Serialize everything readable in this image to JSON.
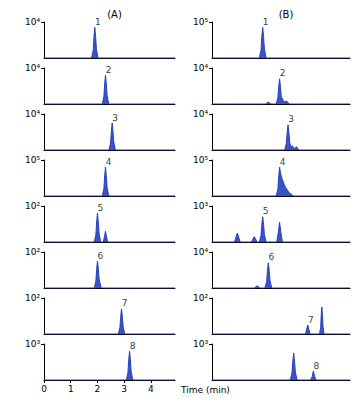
{
  "chart_data": [
    {
      "type": "line",
      "title": "(A)",
      "color": "#2540c0",
      "tick_labels": "y",
      "x": [
        0,
        1.78,
        1.84,
        1.87,
        1.9,
        1.93,
        1.96,
        2.02,
        4.9
      ],
      "values": [
        0,
        0,
        2100,
        6000,
        8500,
        6000,
        2600,
        0,
        0
      ],
      "xlim": [
        0,
        4.9
      ],
      "ylim": [
        0,
        10000
      ],
      "yticks": [
        {
          "value": 10000,
          "label": "10⁴"
        }
      ],
      "annotations": [
        {
          "text": "1",
          "x": 1.9,
          "y": 8500
        }
      ]
    },
    {
      "type": "line",
      "color": "#2540c0",
      "tick_labels": "y",
      "x": [
        0,
        2.18,
        2.24,
        2.27,
        2.3,
        2.33,
        2.36,
        2.42,
        4.9
      ],
      "values": [
        0,
        0,
        2000,
        5600,
        8000,
        5600,
        2400,
        0,
        0
      ],
      "xlim": [
        0,
        4.9
      ],
      "ylim": [
        0,
        10000
      ],
      "yticks": [
        {
          "value": 10000,
          "label": "10⁴"
        }
      ],
      "annotations": [
        {
          "text": "2",
          "x": 2.3,
          "y": 8000
        }
      ]
    },
    {
      "type": "line",
      "color": "#2540c0",
      "tick_labels": "y",
      "x": [
        0,
        2.43,
        2.49,
        2.52,
        2.55,
        2.58,
        2.61,
        2.67,
        4.9
      ],
      "values": [
        0,
        0,
        1900,
        5200,
        7500,
        5200,
        2200,
        0,
        0
      ],
      "xlim": [
        0,
        4.9
      ],
      "ylim": [
        0,
        10000
      ],
      "yticks": [
        {
          "value": 10000,
          "label": "10⁴"
        }
      ],
      "annotations": [
        {
          "text": "3",
          "x": 2.55,
          "y": 7500
        }
      ]
    },
    {
      "type": "line",
      "color": "#2540c0",
      "tick_labels": "y",
      "x": [
        0,
        2.18,
        2.24,
        2.27,
        2.3,
        2.33,
        2.36,
        2.42,
        4.9
      ],
      "values": [
        0,
        0,
        20000,
        56000,
        80000,
        56000,
        24000,
        0,
        0
      ],
      "xlim": [
        0,
        4.9
      ],
      "ylim": [
        0,
        100000
      ],
      "yticks": [
        {
          "value": 100000,
          "label": "10⁵"
        }
      ],
      "annotations": [
        {
          "text": "4",
          "x": 2.3,
          "y": 80000
        }
      ]
    },
    {
      "type": "line",
      "color": "#2540c0",
      "tick_labels": "y",
      "x": [
        0,
        1.88,
        1.94,
        1.97,
        2.0,
        2.03,
        2.06,
        2.12,
        2.22,
        2.27,
        2.3,
        2.33,
        2.38,
        4.9
      ],
      "values": [
        0,
        0,
        20,
        56,
        80,
        56,
        24,
        0,
        0,
        18,
        30,
        18,
        0,
        0
      ],
      "xlim": [
        0,
        4.9
      ],
      "ylim": [
        0,
        100
      ],
      "yticks": [
        {
          "value": 100,
          "label": "10²"
        }
      ],
      "annotations": [
        {
          "text": "5",
          "x": 2.0,
          "y": 80
        }
      ]
    },
    {
      "type": "line",
      "color": "#2540c0",
      "tick_labels": "y",
      "x": [
        0,
        1.88,
        1.94,
        1.97,
        2.0,
        2.03,
        2.06,
        2.14,
        4.9
      ],
      "values": [
        0,
        0,
        19,
        52,
        75,
        55,
        25,
        0,
        0
      ],
      "xlim": [
        0,
        4.9
      ],
      "ylim": [
        0,
        100
      ],
      "yticks": [
        {
          "value": 100,
          "label": "10²"
        }
      ],
      "annotations": [
        {
          "text": "6",
          "x": 2.0,
          "y": 75
        }
      ]
    },
    {
      "type": "line",
      "color": "#2540c0",
      "tick_labels": "y",
      "x": [
        0,
        2.78,
        2.84,
        2.87,
        2.9,
        2.93,
        2.96,
        3.02,
        4.9
      ],
      "values": [
        0,
        0,
        18,
        49,
        70,
        49,
        21,
        0,
        0
      ],
      "xlim": [
        0,
        4.9
      ],
      "ylim": [
        0,
        100
      ],
      "yticks": [
        {
          "value": 100,
          "label": "10²"
        }
      ],
      "annotations": [
        {
          "text": "7",
          "x": 2.9,
          "y": 70
        }
      ]
    },
    {
      "type": "line",
      "color": "#2540c0",
      "x_label": "Time (min)",
      "x": [
        0,
        3.08,
        3.14,
        3.17,
        3.2,
        3.23,
        3.26,
        3.32,
        4.9
      ],
      "values": [
        0,
        0,
        200,
        560,
        800,
        560,
        240,
        0,
        0
      ],
      "xlim": [
        0,
        4.9
      ],
      "xticks": [
        0,
        1,
        2,
        3,
        4
      ],
      "ylim": [
        0,
        1000
      ],
      "yticks": [
        {
          "value": 1000,
          "label": "10³"
        }
      ],
      "annotations": [
        {
          "text": "8",
          "x": 3.2,
          "y": 800
        }
      ]
    },
    {
      "type": "line",
      "title": "(B)",
      "color": "#2540c0",
      "tick_labels": "y",
      "x": [
        0,
        1.68,
        1.74,
        1.77,
        1.8,
        1.83,
        1.86,
        1.92,
        4.9
      ],
      "values": [
        0,
        0,
        21000,
        60000,
        85000,
        60000,
        26000,
        0,
        0
      ],
      "xlim": [
        0,
        4.9
      ],
      "ylim": [
        0,
        100000
      ],
      "yticks": [
        {
          "value": 100000,
          "label": "10⁵"
        }
      ],
      "annotations": [
        {
          "text": "1",
          "x": 1.8,
          "y": 85000
        }
      ]
    },
    {
      "type": "line",
      "color": "#2540c0",
      "tick_labels": "y",
      "x": [
        0,
        1.9,
        2.0,
        2.1,
        2.28,
        2.34,
        2.37,
        2.4,
        2.43,
        2.46,
        2.5,
        2.55,
        2.65,
        2.75,
        4.9
      ],
      "values": [
        0,
        0,
        500,
        0,
        0,
        1800,
        4900,
        7000,
        4900,
        2000,
        1500,
        500,
        800,
        0,
        0
      ],
      "xlim": [
        0,
        4.9
      ],
      "ylim": [
        0,
        10000
      ],
      "yticks": [
        {
          "value": 10000,
          "label": "10⁴"
        }
      ],
      "annotations": [
        {
          "text": "2",
          "x": 2.4,
          "y": 7000
        }
      ]
    },
    {
      "type": "line",
      "color": "#2540c0",
      "tick_labels": "y",
      "x": [
        0,
        2.58,
        2.64,
        2.67,
        2.7,
        2.73,
        2.76,
        2.8,
        2.85,
        2.92,
        3.0,
        3.08,
        4.9
      ],
      "values": [
        0,
        0,
        1800,
        4900,
        7000,
        4900,
        2100,
        600,
        1200,
        300,
        900,
        0,
        0
      ],
      "xlim": [
        0,
        4.9
      ],
      "ylim": [
        0,
        10000
      ],
      "yticks": [
        {
          "value": 10000,
          "label": "10⁴"
        }
      ],
      "annotations": [
        {
          "text": "3",
          "x": 2.7,
          "y": 7000
        }
      ]
    },
    {
      "type": "line",
      "color": "#2540c0",
      "tick_labels": "y",
      "x": [
        0,
        2.28,
        2.34,
        2.37,
        2.4,
        2.43,
        2.46,
        2.5,
        2.6,
        2.75,
        2.9,
        4.9
      ],
      "values": [
        0,
        0,
        20000,
        56000,
        80000,
        65000,
        55000,
        45000,
        25000,
        8000,
        0,
        0
      ],
      "xlim": [
        0,
        4.9
      ],
      "ylim": [
        0,
        100000
      ],
      "yticks": [
        {
          "value": 100000,
          "label": "10⁵"
        }
      ],
      "annotations": [
        {
          "text": "4",
          "x": 2.4,
          "y": 80000
        }
      ]
    },
    {
      "type": "line",
      "color": "#2540c0",
      "tick_labels": "y",
      "x": [
        0,
        0.8,
        0.9,
        1.0,
        1.4,
        1.5,
        1.6,
        1.68,
        1.74,
        1.77,
        1.8,
        1.83,
        1.86,
        1.92,
        2.3,
        2.36,
        2.4,
        2.44,
        2.5,
        4.9
      ],
      "values": [
        0,
        0,
        250,
        0,
        0,
        150,
        0,
        0,
        180,
        490,
        700,
        490,
        210,
        0,
        0,
        300,
        550,
        300,
        0,
        0
      ],
      "xlim": [
        0,
        4.9
      ],
      "ylim": [
        0,
        1000
      ],
      "yticks": [
        {
          "value": 1000,
          "label": "10³"
        }
      ],
      "annotations": [
        {
          "text": "5",
          "x": 1.8,
          "y": 700
        }
      ]
    },
    {
      "type": "line",
      "color": "#2540c0",
      "tick_labels": "y",
      "x": [
        0,
        1.5,
        1.6,
        1.7,
        1.88,
        1.94,
        1.97,
        2.0,
        2.03,
        2.06,
        2.12,
        4.9
      ],
      "values": [
        0,
        0,
        600,
        0,
        0,
        1800,
        4900,
        7000,
        4900,
        2100,
        0,
        0
      ],
      "xlim": [
        0,
        4.9
      ],
      "ylim": [
        0,
        10000
      ],
      "yticks": [
        {
          "value": 10000,
          "label": "10⁴"
        }
      ],
      "annotations": [
        {
          "text": "6",
          "x": 2.0,
          "y": 7000
        }
      ]
    },
    {
      "type": "line",
      "color": "#2540c0",
      "tick_labels": "y",
      "x": [
        0,
        3.32,
        3.4,
        3.48,
        3.82,
        3.86,
        3.88,
        3.9,
        3.92,
        3.94,
        3.98,
        4.9
      ],
      "values": [
        0,
        0,
        25,
        0,
        0,
        20,
        55,
        75,
        55,
        22,
        0,
        0
      ],
      "xlim": [
        0,
        4.9
      ],
      "ylim": [
        0,
        100
      ],
      "yticks": [
        {
          "value": 100,
          "label": "10²"
        }
      ],
      "annotations": [
        {
          "text": "7",
          "x": 3.4,
          "y": 25
        }
      ]
    },
    {
      "type": "line",
      "color": "#2540c0",
      "tick_labels": "y",
      "x": [
        0,
        2.78,
        2.84,
        2.87,
        2.9,
        2.93,
        2.96,
        3.02,
        3.5,
        3.56,
        3.6,
        3.64,
        3.7,
        4.9
      ],
      "values": [
        0,
        0,
        190,
        520,
        750,
        520,
        220,
        0,
        0,
        100,
        250,
        100,
        0,
        0
      ],
      "xlim": [
        0,
        4.9
      ],
      "ylim": [
        0,
        1000
      ],
      "yticks": [
        {
          "value": 1000,
          "label": "10³"
        }
      ],
      "annotations": [
        {
          "text": "8",
          "x": 3.6,
          "y": 250
        }
      ]
    }
  ]
}
